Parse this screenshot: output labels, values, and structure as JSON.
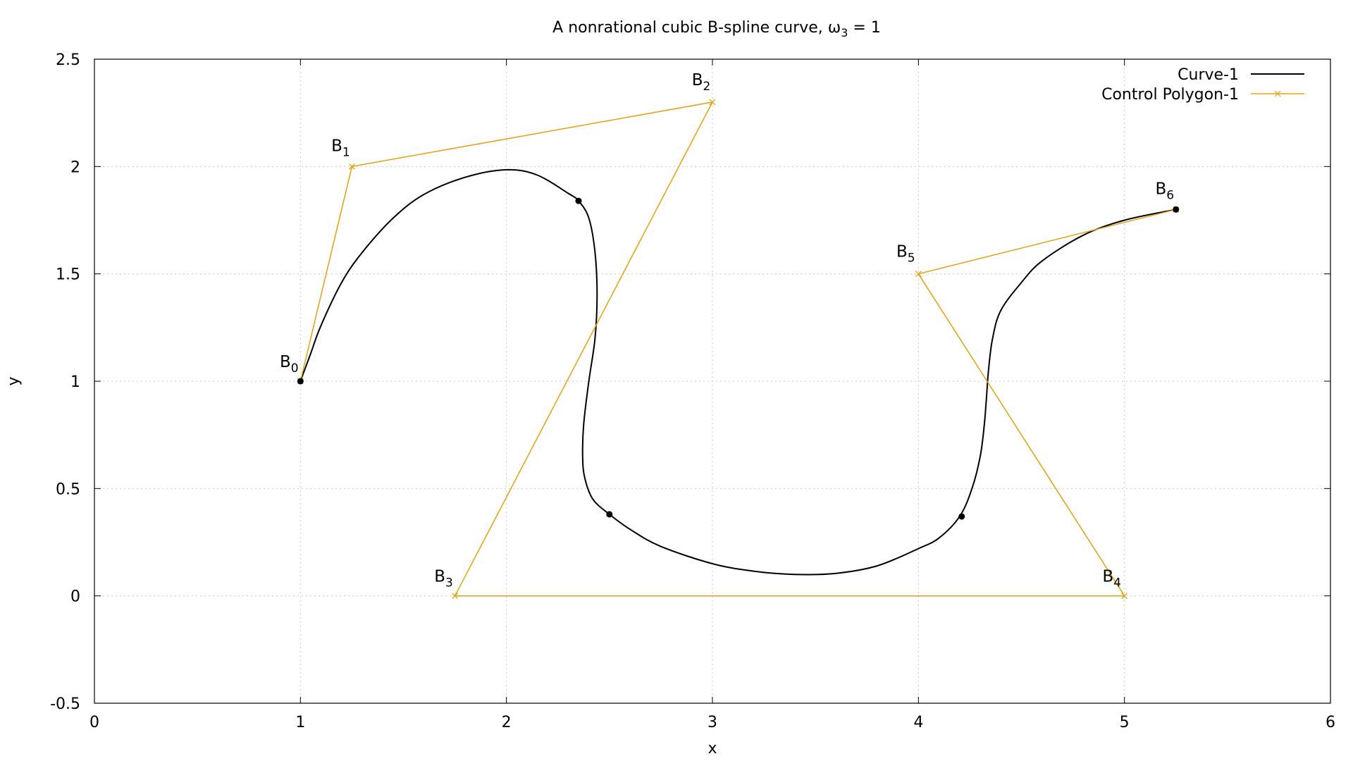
{
  "chart_data": {
    "type": "line",
    "title": {
      "prefix": "A nonrational cubic B-spline curve, ",
      "symbol": "ω",
      "subscript": "3",
      "suffix": " = 1"
    },
    "xlabel": "x",
    "ylabel": "y",
    "xlim": [
      0,
      6
    ],
    "ylim": [
      -0.5,
      2.5
    ],
    "xticks": [
      0,
      1,
      2,
      3,
      4,
      5,
      6
    ],
    "xtick_labels": [
      "0",
      "1",
      "2",
      "3",
      "4",
      "5",
      "6"
    ],
    "yticks": [
      -0.5,
      0,
      0.5,
      1,
      1.5,
      2,
      2.5
    ],
    "ytick_labels": [
      "-0.5",
      "0",
      "0.5",
      "1",
      "1.5",
      "2",
      "2.5"
    ],
    "grid": true,
    "legend_position": "top-right",
    "colors": {
      "curve": "#000000",
      "polygon": "#e5a00d",
      "grid": "#c8c8c8"
    },
    "series": [
      {
        "name": "Curve-1",
        "kind": "curve",
        "x": [
          1.0,
          1.05,
          1.1,
          1.2,
          1.3,
          1.45,
          1.6,
          1.8,
          2.0,
          2.15,
          2.3,
          2.35,
          2.4,
          2.43,
          2.44,
          2.43,
          2.4,
          2.375,
          2.37,
          2.38,
          2.42,
          2.5,
          2.6,
          2.75,
          3.0,
          3.2,
          3.4,
          3.6,
          3.8,
          4.0,
          4.1,
          4.2,
          4.26,
          4.3,
          4.32,
          4.33,
          4.34,
          4.36,
          4.4,
          4.5,
          4.6,
          4.8,
          5.0,
          5.25
        ],
        "y": [
          1.0,
          1.13,
          1.26,
          1.46,
          1.6,
          1.76,
          1.87,
          1.95,
          1.985,
          1.96,
          1.875,
          1.84,
          1.76,
          1.6,
          1.4,
          1.2,
          1.0,
          0.8,
          0.65,
          0.55,
          0.45,
          0.38,
          0.31,
          0.23,
          0.15,
          0.115,
          0.1,
          0.105,
          0.14,
          0.22,
          0.27,
          0.37,
          0.5,
          0.65,
          0.8,
          0.92,
          1.05,
          1.2,
          1.33,
          1.46,
          1.56,
          1.68,
          1.75,
          1.8
        ]
      },
      {
        "name": "Control Polygon-1",
        "kind": "polygon",
        "x": [
          1.0,
          1.25,
          3.0,
          1.75,
          5.0,
          4.0,
          5.25
        ],
        "y": [
          1.0,
          2.0,
          2.3,
          0.0,
          0.0,
          1.5,
          1.8
        ]
      }
    ],
    "knot_points": {
      "x": [
        1.0,
        2.35,
        2.5,
        4.21,
        5.25
      ],
      "y": [
        1.0,
        1.84,
        0.38,
        0.37,
        1.8
      ]
    },
    "point_labels": [
      {
        "base": "B",
        "sub": "0",
        "x": 1.0,
        "y": 1.0
      },
      {
        "base": "B",
        "sub": "1",
        "x": 1.25,
        "y": 2.0
      },
      {
        "base": "B",
        "sub": "2",
        "x": 3.0,
        "y": 2.3
      },
      {
        "base": "B",
        "sub": "3",
        "x": 1.75,
        "y": 0.0
      },
      {
        "base": "B",
        "sub": "4",
        "x": 5.0,
        "y": 0.0
      },
      {
        "base": "B",
        "sub": "5",
        "x": 4.0,
        "y": 1.5
      },
      {
        "base": "B",
        "sub": "6",
        "x": 5.25,
        "y": 1.8
      }
    ]
  }
}
